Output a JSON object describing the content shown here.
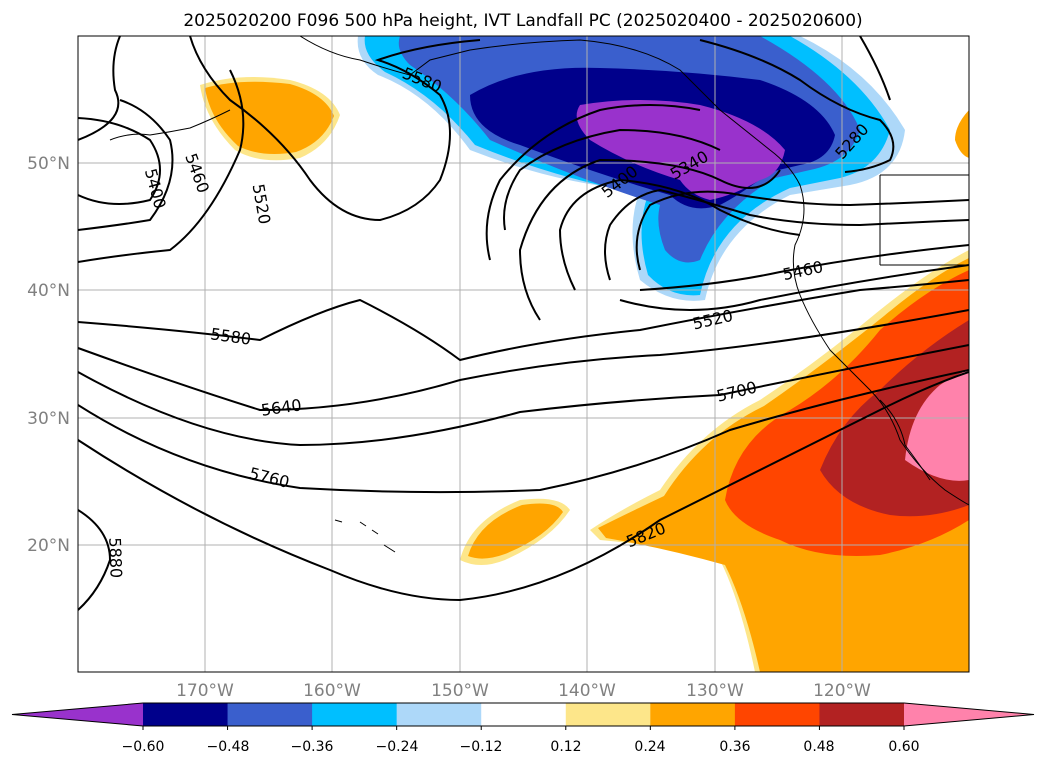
{
  "title": "2025020200 F096 500 hPa height, IVT Landfall PC (2025020400 - 2025020600)",
  "map": {
    "lat_labels": [
      "50°N",
      "40°N",
      "30°N",
      "20°N"
    ],
    "lon_labels": [
      "170°W",
      "160°W",
      "150°W",
      "140°W",
      "130°W",
      "120°W"
    ],
    "contour_labels": [
      "5400",
      "5460",
      "5520",
      "5580",
      "5400",
      "5340",
      "5280",
      "5460",
      "5520",
      "5580",
      "5640",
      "5700",
      "5760",
      "5820",
      "5880"
    ],
    "colors": {
      "land_outline": "#000000",
      "grid": "#b0b0b0",
      "height_contour": "#000000"
    }
  },
  "colorbar": {
    "tick_labels": [
      "−0.60",
      "−0.48",
      "−0.36",
      "−0.24",
      "−0.12",
      "0.12",
      "0.24",
      "0.36",
      "0.48",
      "0.60"
    ],
    "colors": [
      "#9932cc",
      "#00008b",
      "#3a5fcd",
      "#00bfff",
      "#add8f9",
      "#ffffff",
      "#fde68a",
      "#ffa500",
      "#ff4500",
      "#b22222",
      "#ff82ab"
    ]
  }
}
